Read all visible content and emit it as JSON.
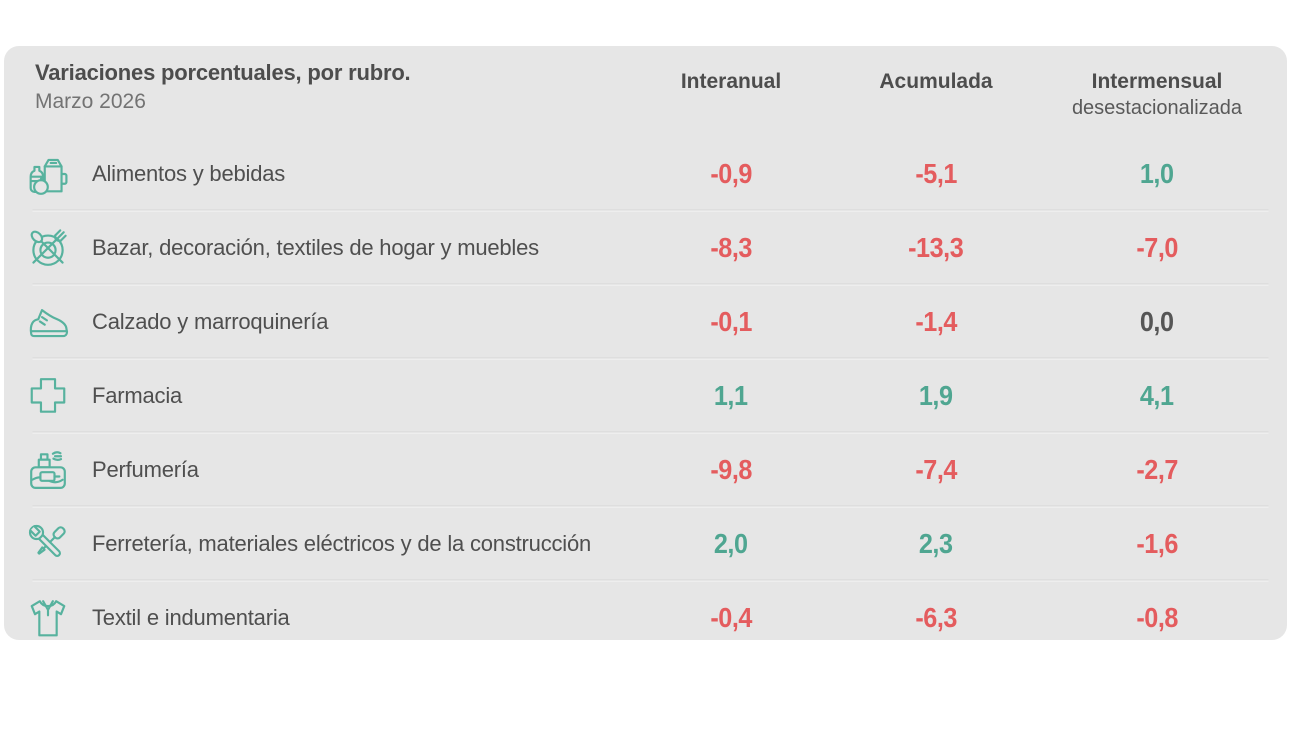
{
  "colors": {
    "card_bg": "#e6e6e6",
    "negative": "#e45c5e",
    "positive": "#4fa691",
    "neutral": "#565656",
    "icon_teal": "#57b29e",
    "dark_text": "#4d4d4d"
  },
  "card": {
    "title": "Variaciones porcentuales, por rubro.",
    "subtitle": "Marzo 2026",
    "columns": [
      {
        "label": "Interanual",
        "sublabel": ""
      },
      {
        "label": "Acumulada",
        "sublabel": ""
      },
      {
        "label": "Intermensual",
        "sublabel": "desestacionalizada"
      }
    ],
    "rows": [
      {
        "icon": "groceries-icon",
        "label": "Alimentos y bebidas",
        "values": [
          {
            "text": "-0,9",
            "tone": "negative"
          },
          {
            "text": "-5,1",
            "tone": "negative"
          },
          {
            "text": "1,0",
            "tone": "positive"
          }
        ]
      },
      {
        "icon": "tableware-icon",
        "label": "Bazar, decoración, textiles de hogar y muebles",
        "values": [
          {
            "text": "-8,3",
            "tone": "negative"
          },
          {
            "text": "-13,3",
            "tone": "negative"
          },
          {
            "text": "-7,0",
            "tone": "negative"
          }
        ]
      },
      {
        "icon": "sneaker-icon",
        "label": "Calzado y marroquinería",
        "values": [
          {
            "text": "-0,1",
            "tone": "negative"
          },
          {
            "text": "-1,4",
            "tone": "negative"
          },
          {
            "text": "0,0",
            "tone": "neutral"
          }
        ]
      },
      {
        "icon": "pharmacy-cross-icon",
        "label": "Farmacia",
        "values": [
          {
            "text": "1,1",
            "tone": "positive"
          },
          {
            "text": "1,9",
            "tone": "positive"
          },
          {
            "text": "4,1",
            "tone": "positive"
          }
        ]
      },
      {
        "icon": "perfume-icon",
        "label": "Perfumería",
        "values": [
          {
            "text": "-9,8",
            "tone": "negative"
          },
          {
            "text": "-7,4",
            "tone": "negative"
          },
          {
            "text": "-2,7",
            "tone": "negative"
          }
        ]
      },
      {
        "icon": "tools-icon",
        "label": "Ferretería, materiales eléctricos y de la construcción",
        "values": [
          {
            "text": "2,0",
            "tone": "positive"
          },
          {
            "text": "2,3",
            "tone": "positive"
          },
          {
            "text": "-1,6",
            "tone": "negative"
          }
        ]
      },
      {
        "icon": "shirt-icon",
        "label": "Textil e indumentaria",
        "values": [
          {
            "text": "-0,4",
            "tone": "negative"
          },
          {
            "text": "-6,3",
            "tone": "negative"
          },
          {
            "text": "-0,8",
            "tone": "negative"
          }
        ]
      }
    ]
  },
  "chart_data": {
    "type": "table",
    "title": "Variaciones porcentuales, por rubro.",
    "subtitle": "Marzo 2026",
    "categories": [
      "Alimentos y bebidas",
      "Bazar, decoración, textiles de hogar y muebles",
      "Calzado y marroquinería",
      "Farmacia",
      "Perfumería",
      "Ferretería, materiales eléctricos y de la construcción",
      "Textil e indumentaria"
    ],
    "series": [
      {
        "name": "Interanual",
        "values": [
          -0.9,
          -8.3,
          -0.1,
          1.1,
          -9.8,
          2.0,
          -0.4
        ]
      },
      {
        "name": "Acumulada",
        "values": [
          -5.1,
          -13.3,
          -1.4,
          1.9,
          -7.4,
          2.3,
          -6.3
        ]
      },
      {
        "name": "Intermensual desestacionalizada",
        "values": [
          1.0,
          -7.0,
          0.0,
          4.1,
          -2.7,
          -1.6,
          -0.8
        ]
      }
    ],
    "notes": "negative values shown in red, positive in teal, zero in dark gray; decimal comma formatting"
  }
}
